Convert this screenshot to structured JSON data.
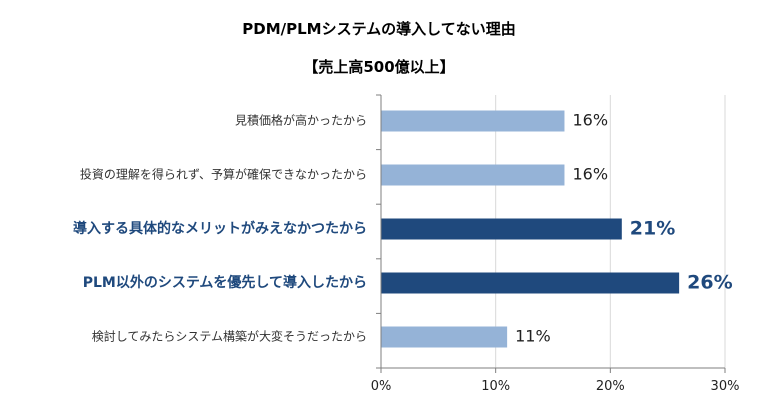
{
  "chart_data": {
    "type": "bar",
    "orientation": "horizontal",
    "title": "PDM/PLMシステムの導入してない理由",
    "subtitle": "【売上高500億以上】",
    "categories": [
      "見積価格が高かったから",
      "投資の理解を得られず、予算が確保できなかったから",
      "導入する具体的なメリットがみえなかつたから",
      "PLM以外のシステムを優先して導入したから",
      "検討してみたらシステム構築が大変そうだったから"
    ],
    "values": [
      16,
      16,
      21,
      26,
      11
    ],
    "value_labels": [
      "16%",
      "16%",
      "21%",
      "26%",
      "11%"
    ],
    "highlighted": [
      false,
      false,
      true,
      true,
      false
    ],
    "xlim": [
      0,
      30
    ],
    "xticks": [
      0,
      10,
      20,
      30
    ],
    "xtick_labels": [
      "0%",
      "10%",
      "20%",
      "30%"
    ],
    "grid": true,
    "colors": {
      "normal": "#95b3d7",
      "highlight": "#1f497d",
      "grid": "#d9d9d9",
      "axis": "#7f7f7f"
    }
  }
}
